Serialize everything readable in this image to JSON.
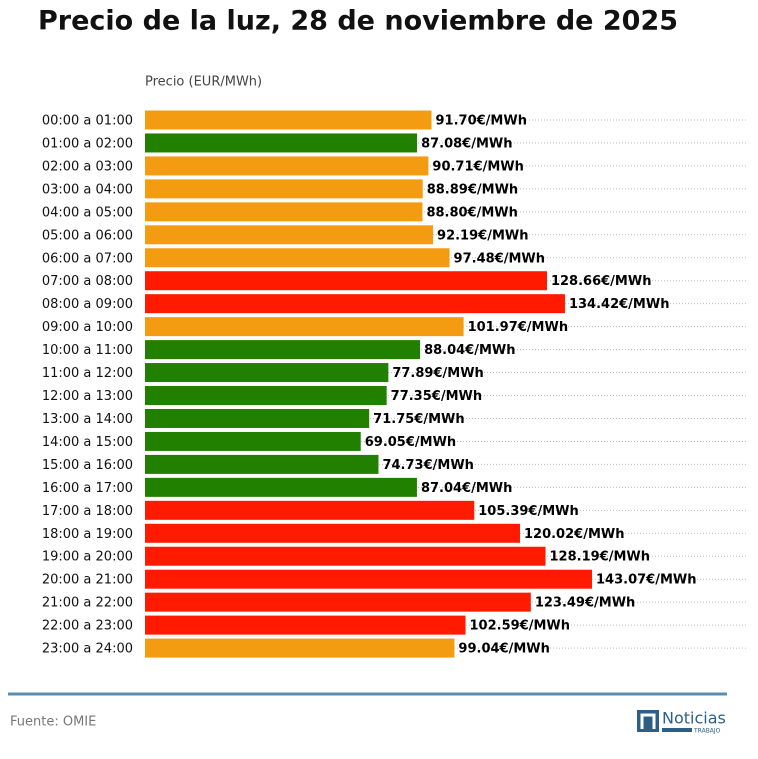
{
  "chart_data": {
    "type": "bar",
    "orientation": "horizontal",
    "title": "Precio de la luz, 28 de noviembre de 2025",
    "x_label": "Precio (EUR/MWh)",
    "categories": [
      "00:00 a 01:00",
      "01:00 a 02:00",
      "02:00 a 03:00",
      "03:00 a 04:00",
      "04:00 a 05:00",
      "05:00 a 06:00",
      "06:00 a 07:00",
      "07:00 a 08:00",
      "08:00 a 09:00",
      "09:00 a 10:00",
      "10:00 a 11:00",
      "11:00 a 12:00",
      "12:00 a 13:00",
      "13:00 a 14:00",
      "14:00 a 15:00",
      "15:00 a 16:00",
      "16:00 a 17:00",
      "17:00 a 18:00",
      "18:00 a 19:00",
      "19:00 a 20:00",
      "20:00 a 21:00",
      "21:00 a 22:00",
      "22:00 a 23:00",
      "23:00 a 24:00"
    ],
    "values": [
      91.7,
      87.08,
      90.71,
      88.89,
      88.8,
      92.19,
      97.48,
      128.66,
      134.42,
      101.97,
      88.04,
      77.89,
      77.35,
      71.75,
      69.05,
      74.73,
      87.04,
      105.39,
      120.02,
      128.19,
      143.07,
      123.49,
      102.59,
      99.04
    ],
    "value_labels": [
      "91.70€/MWh",
      "87.08€/MWh",
      "90.71€/MWh",
      "88.89€/MWh",
      "88.80€/MWh",
      "92.19€/MWh",
      "97.48€/MWh",
      "128.66€/MWh",
      "134.42€/MWh",
      "101.97€/MWh",
      "88.04€/MWh",
      "77.89€/MWh",
      "77.35€/MWh",
      "71.75€/MWh",
      "69.05€/MWh",
      "74.73€/MWh",
      "87.04€/MWh",
      "105.39€/MWh",
      "120.02€/MWh",
      "128.19€/MWh",
      "143.07€/MWh",
      "123.49€/MWh",
      "102.59€/MWh",
      "99.04€/MWh"
    ],
    "colors": [
      "#f39c12",
      "#228000",
      "#f39c12",
      "#f39c12",
      "#f39c12",
      "#f39c12",
      "#f39c12",
      "#ff1a00",
      "#ff1a00",
      "#f39c12",
      "#228000",
      "#228000",
      "#228000",
      "#228000",
      "#228000",
      "#228000",
      "#228000",
      "#ff1a00",
      "#ff1a00",
      "#ff1a00",
      "#ff1a00",
      "#ff1a00",
      "#ff1a00",
      "#f39c12"
    ],
    "xlim": [
      0,
      193
    ],
    "source": "Fuente: OMIE",
    "logo": {
      "name": "Noticias",
      "sub": "TRABAJO"
    }
  }
}
